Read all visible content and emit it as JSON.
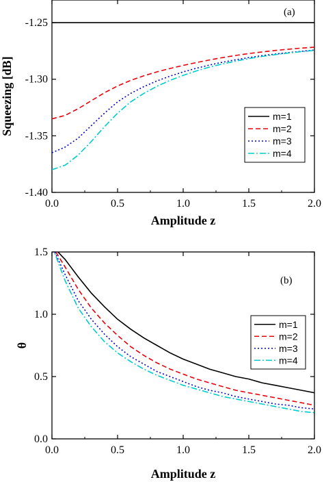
{
  "chart_data": [
    {
      "type": "line",
      "panel_label": "(a)",
      "xlabel": "Amplitude z",
      "ylabel": "Squeezing [dB]",
      "xlim": [
        0,
        2
      ],
      "ylim": [
        -1.4,
        -1.23
      ],
      "xticks": [
        "0.0",
        "0.5",
        "1.0",
        "1.5",
        "2.0"
      ],
      "yticks": [
        "-1.25",
        "-1.30",
        "-1.35",
        "-1.40"
      ],
      "legend_position": "right",
      "x": [
        0,
        0.1,
        0.2,
        0.3,
        0.4,
        0.5,
        0.6,
        0.7,
        0.8,
        0.9,
        1.0,
        1.1,
        1.2,
        1.3,
        1.4,
        1.5,
        1.6,
        1.7,
        1.8,
        1.9,
        2.0
      ],
      "series": [
        {
          "name": "m=1",
          "color": "#000000",
          "dash": "solid",
          "values": [
            -1.25,
            -1.25,
            -1.25,
            -1.25,
            -1.25,
            -1.25,
            -1.25,
            -1.25,
            -1.25,
            -1.25,
            -1.25,
            -1.25,
            -1.25,
            -1.25,
            -1.25,
            -1.25,
            -1.25,
            -1.25,
            -1.25,
            -1.25,
            -1.25
          ]
        },
        {
          "name": "m=2",
          "color": "#e8000b",
          "dash": "dashed",
          "values": [
            -1.335,
            -1.332,
            -1.326,
            -1.319,
            -1.312,
            -1.306,
            -1.301,
            -1.297,
            -1.2935,
            -1.2905,
            -1.2878,
            -1.2853,
            -1.283,
            -1.2809,
            -1.279,
            -1.2773,
            -1.2759,
            -1.2746,
            -1.2735,
            -1.2725,
            -1.2717
          ]
        },
        {
          "name": "m=3",
          "color": "#0000cc",
          "dash": "dotted",
          "values": [
            -1.365,
            -1.36,
            -1.352,
            -1.341,
            -1.33,
            -1.32,
            -1.3125,
            -1.3065,
            -1.3015,
            -1.2973,
            -1.2935,
            -1.2903,
            -1.2875,
            -1.285,
            -1.2828,
            -1.2809,
            -1.2792,
            -1.2778,
            -1.2765,
            -1.2753,
            -1.2742
          ]
        },
        {
          "name": "m=4",
          "color": "#00cccc",
          "dash": "dashdot",
          "values": [
            -1.38,
            -1.376,
            -1.367,
            -1.355,
            -1.342,
            -1.33,
            -1.32,
            -1.3125,
            -1.3062,
            -1.301,
            -1.2966,
            -1.2927,
            -1.2893,
            -1.2865,
            -1.284,
            -1.2818,
            -1.2799,
            -1.2783,
            -1.2769,
            -1.2756,
            -1.2745
          ]
        }
      ]
    },
    {
      "type": "line",
      "panel_label": "(b)",
      "xlabel": "Amplitude z",
      "ylabel": "θ",
      "xlim": [
        0,
        2
      ],
      "ylim": [
        0,
        1.5
      ],
      "xticks": [
        "0.0",
        "0.5",
        "1.0",
        "1.5",
        "2.0"
      ],
      "yticks": [
        "0.0",
        "0.5",
        "1.0",
        "1.5"
      ],
      "legend_position": "right",
      "x": [
        0,
        0.1,
        0.2,
        0.3,
        0.4,
        0.5,
        0.6,
        0.7,
        0.8,
        0.9,
        1.0,
        1.1,
        1.2,
        1.3,
        1.4,
        1.5,
        1.6,
        1.7,
        1.8,
        1.9,
        2.0
      ],
      "series": [
        {
          "name": "m=1",
          "color": "#000000",
          "dash": "solid",
          "values": [
            1.55,
            1.44,
            1.3,
            1.17,
            1.06,
            0.96,
            0.88,
            0.81,
            0.75,
            0.69,
            0.64,
            0.6,
            0.56,
            0.53,
            0.5,
            0.48,
            0.45,
            0.43,
            0.41,
            0.39,
            0.37
          ]
        },
        {
          "name": "m=2",
          "color": "#e8000b",
          "dash": "dashed",
          "values": [
            1.55,
            1.38,
            1.2,
            1.05,
            0.93,
            0.83,
            0.74,
            0.67,
            0.61,
            0.56,
            0.52,
            0.48,
            0.45,
            0.42,
            0.39,
            0.37,
            0.35,
            0.33,
            0.31,
            0.29,
            0.27
          ]
        },
        {
          "name": "m=3",
          "color": "#0000cc",
          "dash": "dotted",
          "values": [
            1.55,
            1.32,
            1.11,
            0.96,
            0.84,
            0.74,
            0.66,
            0.6,
            0.54,
            0.5,
            0.46,
            0.42,
            0.39,
            0.37,
            0.34,
            0.32,
            0.3,
            0.28,
            0.27,
            0.25,
            0.24
          ]
        },
        {
          "name": "m=4",
          "color": "#00cccc",
          "dash": "dashdot",
          "values": [
            1.55,
            1.27,
            1.05,
            0.9,
            0.78,
            0.69,
            0.62,
            0.56,
            0.51,
            0.47,
            0.43,
            0.4,
            0.37,
            0.34,
            0.32,
            0.3,
            0.28,
            0.26,
            0.24,
            0.22,
            0.21
          ]
        }
      ]
    }
  ]
}
